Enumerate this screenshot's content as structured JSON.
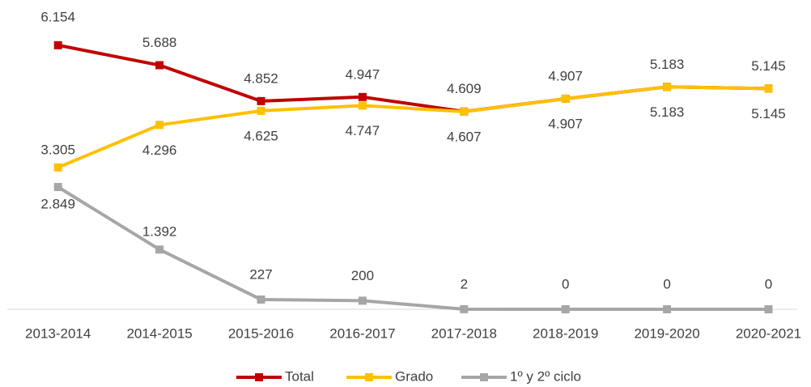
{
  "chart_data": {
    "type": "line",
    "categories": [
      "2013-2014",
      "2014-2015",
      "2015-2016",
      "2016-2017",
      "2017-2018",
      "2018-2019",
      "2019-2020",
      "2020-2021"
    ],
    "series": [
      {
        "name": "Total",
        "color": "#c00000",
        "values": [
          6154,
          5688,
          4852,
          4947,
          4609,
          4907,
          5183,
          5145
        ],
        "value_labels": [
          "6.154",
          "5.688",
          "4.852",
          "4.947",
          "4.609",
          "4.907",
          "5.183",
          "5.145"
        ]
      },
      {
        "name": "Grado",
        "color": "#ffc000",
        "values": [
          3305,
          4296,
          4625,
          4747,
          4607,
          4907,
          5183,
          5145
        ],
        "value_labels": [
          "3.305",
          "4.296",
          "4.625",
          "4.747",
          "4.607",
          "4.907",
          "5.183",
          "5.145"
        ]
      },
      {
        "name": "1º y 2º ciclo",
        "color": "#a6a6a6",
        "values": [
          2849,
          1392,
          227,
          200,
          2,
          0,
          0,
          0
        ],
        "value_labels": [
          "2.849",
          "1.392",
          "227",
          "200",
          "2",
          "0",
          "0",
          "0"
        ]
      }
    ],
    "ylim": [
      0,
      7000
    ],
    "legend": "bottom"
  }
}
